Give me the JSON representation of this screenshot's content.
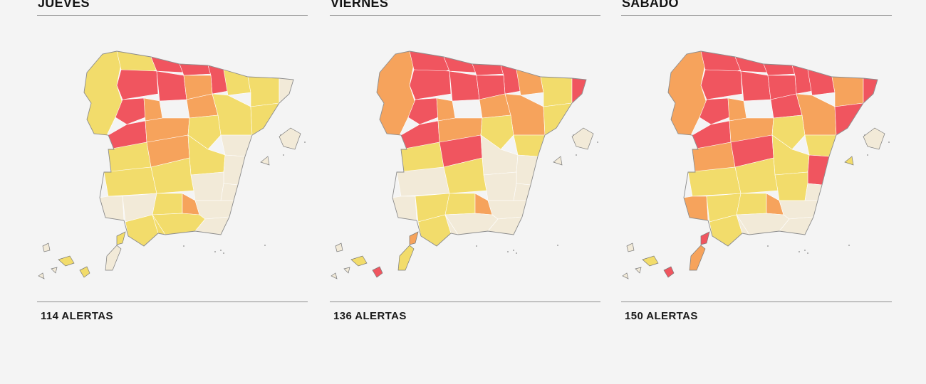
{
  "legend_colors": {
    "sin_alerta": "#f2ead8",
    "amarillo": "#f2dc6b",
    "naranja": "#f6a35c",
    "rojo": "#f0555f"
  },
  "panels": [
    {
      "day": "JUEVES",
      "alerts": "114 ALERTAS",
      "regions": {
        "galicia": "#f2dc6b",
        "asturias": "#f2dc6b",
        "cantabria": "#f0555f",
        "vasco": "#f0555f",
        "navarra": "#f0555f",
        "aragon_n": "#f2dc6b",
        "catalonia": "#f2dc6b",
        "girona": "#f2ead8",
        "leon": "#f0555f",
        "burgos": "#f0555f",
        "rioja": "#f6a35c",
        "zamora": "#f0555f",
        "valladolid": "#f6a35c",
        "soria": "#f6a35c",
        "aragon_s": "#f2dc6b",
        "tarragona": "#f2dc6b",
        "salamanca": "#f0555f",
        "madrid": "#f6a35c",
        "guadalajara": "#f2dc6b",
        "cuenca": "#f2dc6b",
        "castellon": "#f2ead8",
        "valencia": "#f2ead8",
        "caceres": "#f2dc6b",
        "toledo": "#f6a35c",
        "ciudad_real": "#f2dc6b",
        "albacete": "#f2ead8",
        "badajoz": "#f2dc6b",
        "cordoba": "#f2dc6b",
        "jaen": "#f6a35c",
        "murcia": "#f2ead8",
        "alicante": "#f2ead8",
        "huelva": "#f2ead8",
        "sevilla": "#f2ead8",
        "granada": "#f2dc6b",
        "almeria": "#f2ead8",
        "cadiz": "#f2dc6b",
        "malaga": "#f2dc6b",
        "baleares": "#f2ead8",
        "ibiza": "#f2ead8",
        "gran_canaria": "#f2dc6b",
        "tenerife": "#f2dc6b",
        "fuerteventura": "#f2ead8",
        "lanzarote": "#f2dc6b"
      }
    },
    {
      "day": "VIERNES",
      "alerts": "136 ALERTAS",
      "regions": {
        "galicia": "#f6a35c",
        "asturias": "#f0555f",
        "cantabria": "#f0555f",
        "vasco": "#f0555f",
        "navarra": "#f0555f",
        "aragon_n": "#f6a35c",
        "catalonia": "#f2dc6b",
        "girona": "#f0555f",
        "leon": "#f0555f",
        "burgos": "#f0555f",
        "rioja": "#f0555f",
        "zamora": "#f0555f",
        "valladolid": "#f6a35c",
        "soria": "#f6a35c",
        "aragon_s": "#f6a35c",
        "tarragona": "#f2dc6b",
        "salamanca": "#f0555f",
        "madrid": "#f6a35c",
        "guadalajara": "#f2dc6b",
        "cuenca": "#f2ead8",
        "castellon": "#f2dc6b",
        "valencia": "#f2ead8",
        "caceres": "#f2dc6b",
        "toledo": "#f0555f",
        "ciudad_real": "#f2dc6b",
        "albacete": "#f2ead8",
        "badajoz": "#f2ead8",
        "cordoba": "#f2dc6b",
        "jaen": "#f6a35c",
        "murcia": "#f2ead8",
        "alicante": "#f2ead8",
        "huelva": "#f2ead8",
        "sevilla": "#f2dc6b",
        "granada": "#f2ead8",
        "almeria": "#f2ead8",
        "cadiz": "#f2dc6b",
        "malaga": "#f2ead8",
        "baleares": "#f2ead8",
        "ibiza": "#f2ead8",
        "gran_canaria": "#f0555f",
        "tenerife": "#f2dc6b",
        "fuerteventura": "#f2dc6b",
        "lanzarote": "#f6a35c"
      }
    },
    {
      "day": "SÁBADO",
      "alerts": "150 ALERTAS",
      "regions": {
        "galicia": "#f6a35c",
        "asturias": "#f0555f",
        "cantabria": "#f0555f",
        "vasco": "#f0555f",
        "navarra": "#f0555f",
        "aragon_n": "#f0555f",
        "catalonia": "#f6a35c",
        "girona": "#f0555f",
        "leon": "#f0555f",
        "burgos": "#f0555f",
        "rioja": "#f0555f",
        "zamora": "#f0555f",
        "valladolid": "#f6a35c",
        "soria": "#f0555f",
        "aragon_s": "#f6a35c",
        "tarragona": "#f0555f",
        "salamanca": "#f0555f",
        "madrid": "#f6a35c",
        "guadalajara": "#f2dc6b",
        "cuenca": "#f2dc6b",
        "castellon": "#f2dc6b",
        "valencia": "#f0555f",
        "caceres": "#f6a35c",
        "toledo": "#f0555f",
        "ciudad_real": "#f2dc6b",
        "albacete": "#f2dc6b",
        "badajoz": "#f2dc6b",
        "cordoba": "#f2dc6b",
        "jaen": "#f6a35c",
        "murcia": "#f2ead8",
        "alicante": "#f2ead8",
        "huelva": "#f6a35c",
        "sevilla": "#f2dc6b",
        "granada": "#f2ead8",
        "almeria": "#f2ead8",
        "cadiz": "#f2dc6b",
        "malaga": "#f2ead8",
        "baleares": "#f2ead8",
        "ibiza": "#f2dc6b",
        "gran_canaria": "#f0555f",
        "tenerife": "#f2dc6b",
        "fuerteventura": "#f6a35c",
        "lanzarote": "#f0555f"
      }
    }
  ]
}
